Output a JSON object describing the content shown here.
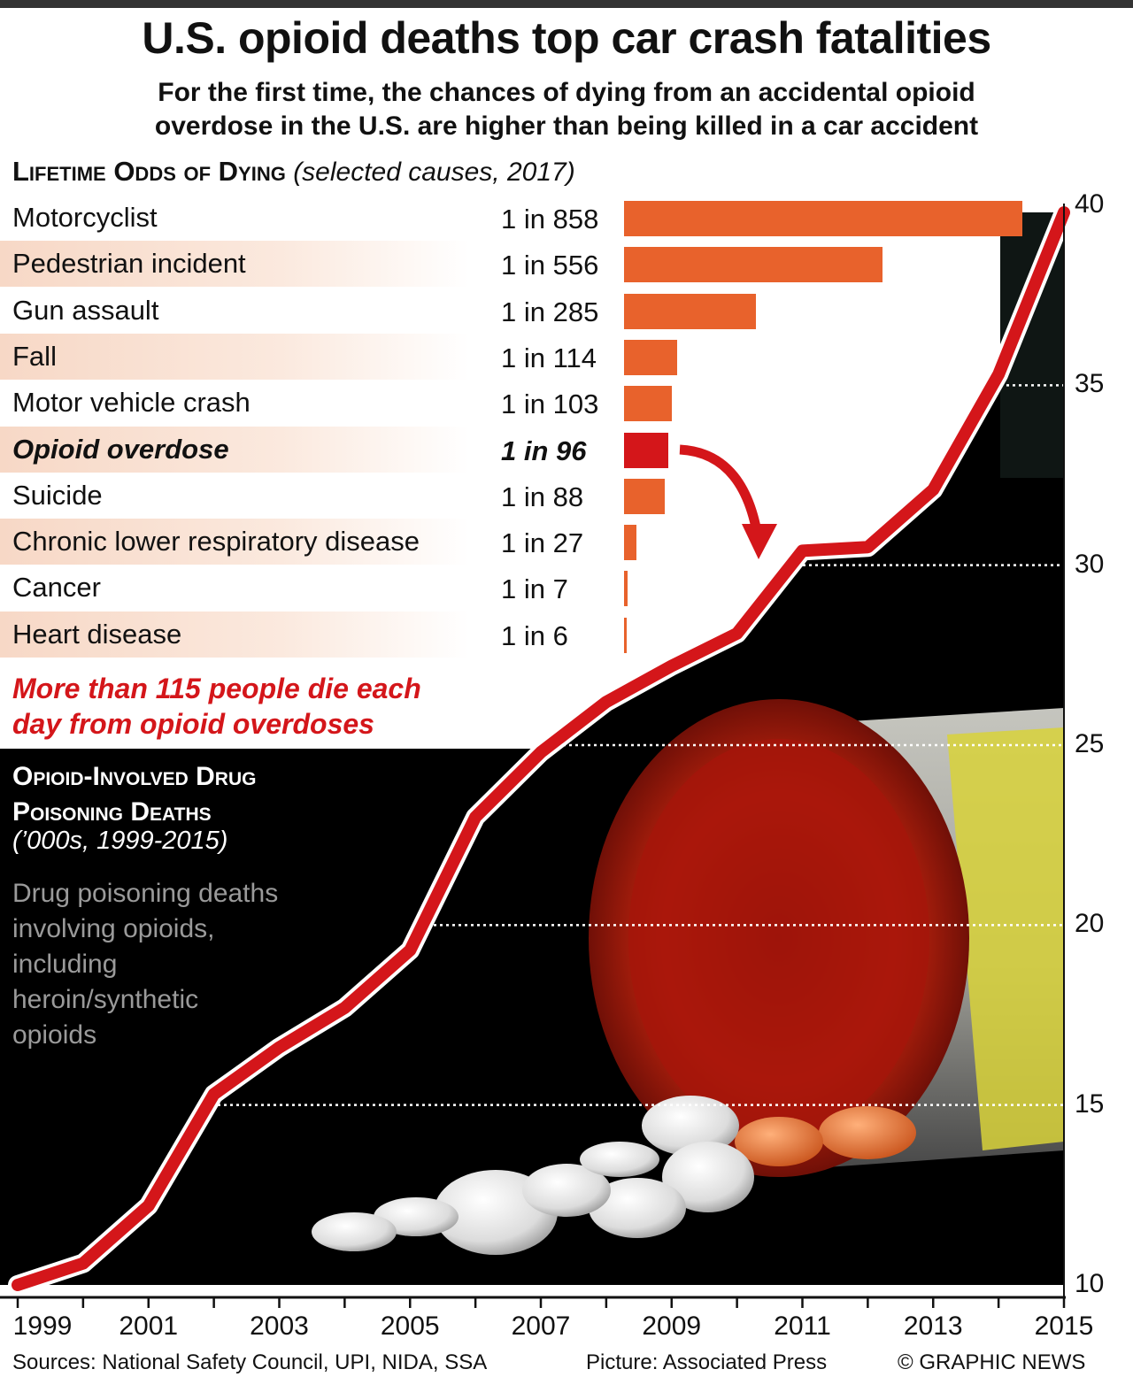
{
  "header": {
    "title": "U.S. opioid deaths top car crash fatalities",
    "subtitle_line1": "For the first time, the chances of dying from an accidental opioid",
    "subtitle_line2": "overdose in the U.S. are higher than being killed in a car accident"
  },
  "odds_section": {
    "heading": "Lifetime Odds of Dying",
    "heading_note": "(selected causes, 2017)"
  },
  "callout": {
    "line1": "More than 115 people die each",
    "line2": "day from opioid overdoses"
  },
  "deaths_section": {
    "heading_line1": "Opioid-Involved Drug",
    "heading_line2": "Poisoning Deaths",
    "note": "(’000s, 1999-2015)",
    "desc_line1": "Drug poisoning deaths",
    "desc_line2": "involving opioids,",
    "desc_line3": "including",
    "desc_line4": "heroin/synthetic",
    "desc_line5": "opioids"
  },
  "footer": {
    "sources": "Sources: National Safety Council, UPI, NIDA, SSA",
    "picture": "Picture: Associated Press",
    "credit": "© GRAPHIC NEWS"
  },
  "colors": {
    "bar": "#e8622c",
    "bar_highlight": "#d4161a",
    "line": "#d4161a",
    "dark_panel": "#000000"
  },
  "chart_data": [
    {
      "type": "bar",
      "orientation": "horizontal",
      "categories": [
        "Motorcyclist",
        "Pedestrian incident",
        "Gun assault",
        "Fall",
        "Motor vehicle crash",
        "Opioid overdose",
        "Suicide",
        "Chronic lower respiratory disease",
        "Cancer",
        "Heart disease"
      ],
      "labels": [
        "1 in 858",
        "1 in 556",
        "1 in 285",
        "1 in 114",
        "1 in 103",
        "1 in 96",
        "1 in 88",
        "1 in 27",
        "1 in 7",
        "1 in 6"
      ],
      "values": [
        858,
        556,
        285,
        114,
        103,
        96,
        88,
        27,
        7,
        6
      ],
      "highlight": "Opioid overdose",
      "xlim": [
        0,
        858
      ]
    },
    {
      "type": "line",
      "x": [
        1999,
        2000,
        2001,
        2002,
        2003,
        2004,
        2005,
        2006,
        2007,
        2008,
        2009,
        2010,
        2011,
        2012,
        2013,
        2014,
        2015
      ],
      "y": [
        10.0,
        10.6,
        12.2,
        15.3,
        16.6,
        17.7,
        19.3,
        23.0,
        24.8,
        26.2,
        27.2,
        28.1,
        30.4,
        30.5,
        32.1,
        35.3,
        39.8
      ],
      "ylim": [
        10,
        40
      ],
      "xlim": [
        1999,
        2015
      ],
      "yticks": [
        10,
        15,
        20,
        25,
        30,
        35,
        40
      ],
      "xtick_labels": [
        "1999",
        "2001",
        "2003",
        "2005",
        "2007",
        "2009",
        "2011",
        "2013",
        "2015"
      ],
      "ylabel": "",
      "xlabel": ""
    }
  ]
}
